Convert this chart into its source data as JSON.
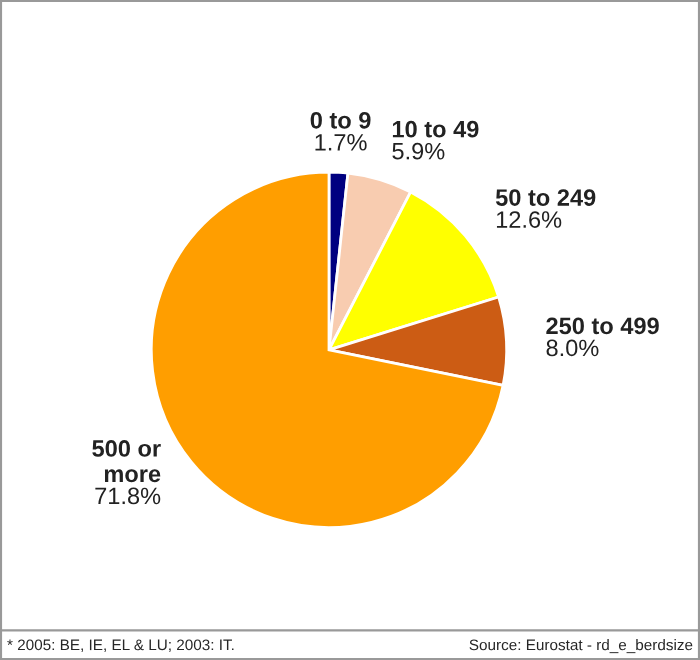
{
  "chart_data": {
    "type": "pie",
    "categories": [
      "0 to 9",
      "10 to 49",
      "50 to 249",
      "250 to 499",
      "500 or\nmore"
    ],
    "values": [
      1.7,
      5.9,
      12.6,
      8.0,
      71.8
    ],
    "value_labels": [
      "1.7%",
      "5.9%",
      "12.6%",
      "8.0%",
      "71.8%"
    ],
    "colors": [
      "#000080",
      "#f8ccb0",
      "#ffff00",
      "#cc5c14",
      "#ff9e00"
    ],
    "annotations": [
      "* 2005: BE, IE, EL & LU; 2003: IT.",
      "Source: Eurostat - rd_e_berdsize"
    ],
    "legend": false
  }
}
